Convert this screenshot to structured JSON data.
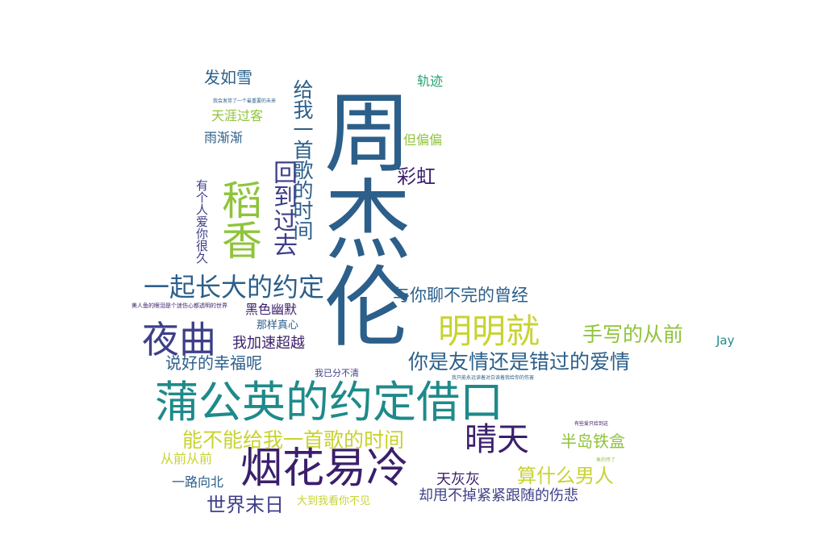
{
  "palette": {
    "purple": "#3b1f6b",
    "indigo": "#3e3f88",
    "blue": "#2c5f8a",
    "teal": "#1f8a8a",
    "green": "#25a36f",
    "lime": "#8fc43a",
    "yellow": "#c8d331"
  },
  "words": [
    "周杰伦",
    "蒲公英的约定借口",
    "烟花易冷",
    "稻香",
    "夜曲",
    "明明就",
    "晴天",
    "一起长大的约定",
    "回到过去",
    "给我一首歌的时间",
    "你是友情还是错过的爱情",
    "能不能给我一首歌的时间",
    "手写的从前",
    "与你聊不完的曾经",
    "算什么男人",
    "世界末日",
    "彩虹",
    "说好的幸福呢",
    "有个人爱你很久",
    "半岛铁盒",
    "却甩不掉紧紧跟随的伤悲",
    "发如雪",
    "黑色幽默",
    "我加速超越",
    "天灰灰",
    "一路向北",
    "从前从前",
    "天涯过客",
    "雨渐渐",
    "但偏偏",
    "轨迹",
    "那样真心",
    "大到我看你不见",
    "Jay",
    "我已分不清",
    "美人鱼的眼泪是个迷伤心都透明的世界",
    "有些爱只给到这",
    "鱼的传了",
    "我只能永远读着对白读着我给你的伤害",
    "我会发芽了一个最重要的未来"
  ]
}
